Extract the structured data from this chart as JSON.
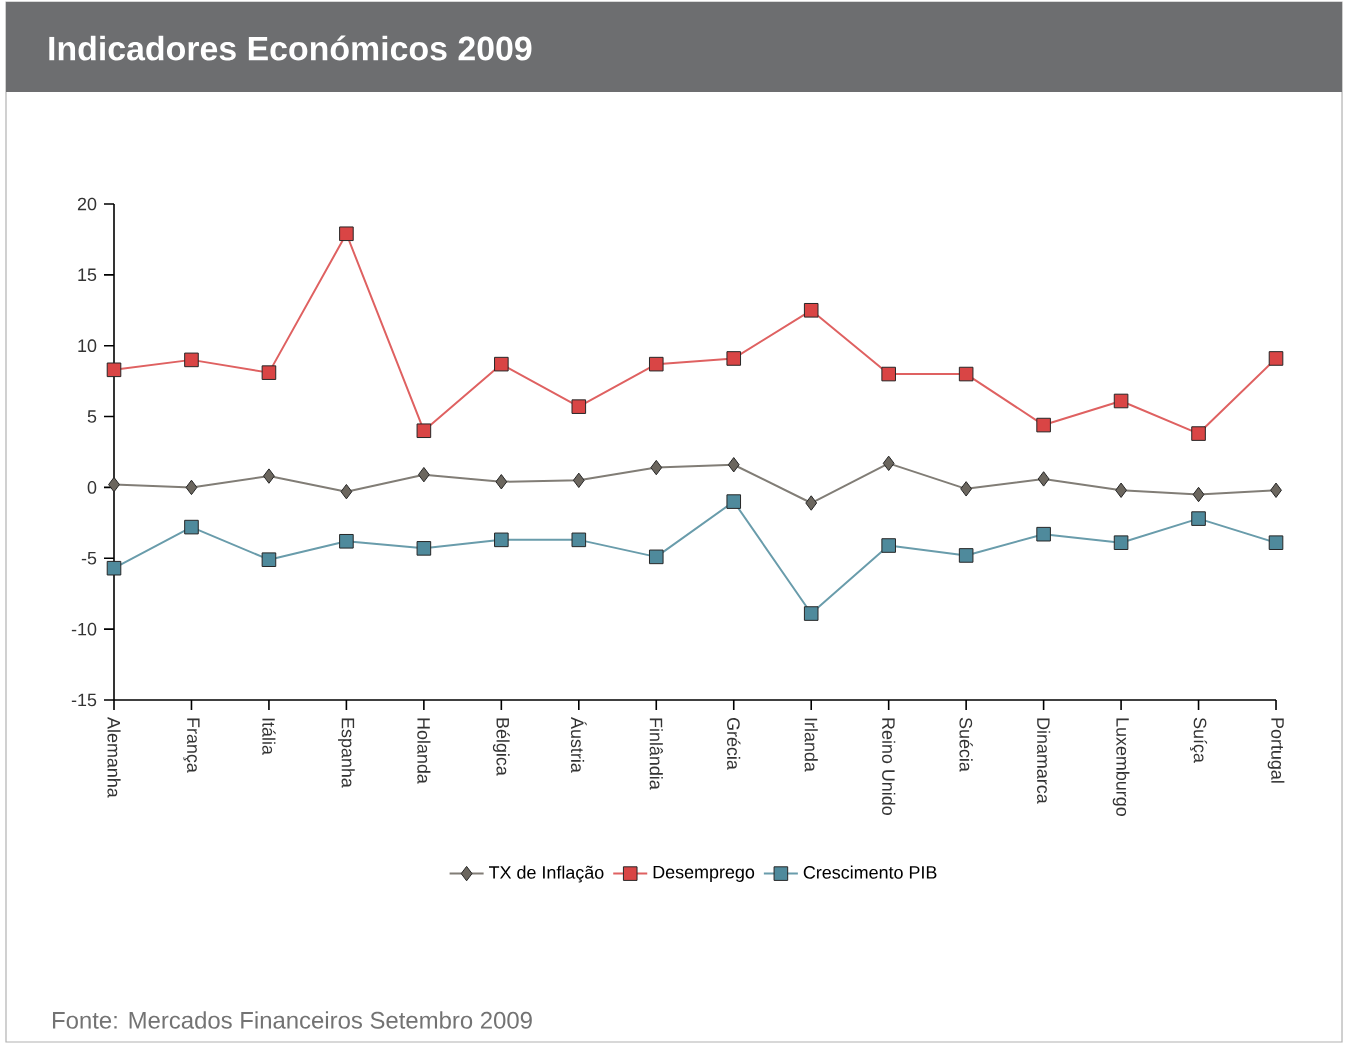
{
  "chart_data": {
    "type": "line",
    "title": "Indicadores Económicos 2009",
    "categories": [
      "Alemanha",
      "França",
      "Itália",
      "Espanha",
      "Holanda",
      "Bélgica",
      "Áustria",
      "Finlândia",
      "Grécia",
      "Irlanda",
      "Reino Unido",
      "Suécia",
      "Dinamarca",
      "Luxemburgo",
      "Suíça",
      "Portugal"
    ],
    "series": [
      {
        "name": "TX de Inflação",
        "color": "#6b665e",
        "marker": "diamond",
        "values": [
          0.2,
          0.0,
          0.8,
          -0.3,
          0.9,
          0.4,
          0.5,
          1.4,
          1.6,
          -1.1,
          1.7,
          -0.1,
          0.6,
          -0.2,
          -0.5,
          -0.2
        ]
      },
      {
        "name": "Desemprego",
        "color": "#d94545",
        "marker": "square",
        "values": [
          8.3,
          9.0,
          8.1,
          17.9,
          4.0,
          8.7,
          5.7,
          8.7,
          9.1,
          12.5,
          8.0,
          8.0,
          4.4,
          6.1,
          3.8,
          9.1
        ]
      },
      {
        "name": "Crescimento PIB",
        "color": "#4f8a9c",
        "marker": "square",
        "values": [
          -5.7,
          -2.8,
          -5.1,
          -3.8,
          -4.3,
          -3.7,
          -3.7,
          -4.9,
          -1.0,
          -8.9,
          -4.1,
          -4.8,
          -3.3,
          -3.9,
          -2.2,
          -3.9
        ]
      }
    ],
    "ylim": [
      -15,
      20
    ],
    "yticks": [
      -15,
      -10,
      -5,
      0,
      5,
      10,
      15,
      20
    ],
    "grid": false,
    "legend": "bottom",
    "annotations": [
      "Fonte: Mercados Financeiros Setembro 2009"
    ]
  }
}
